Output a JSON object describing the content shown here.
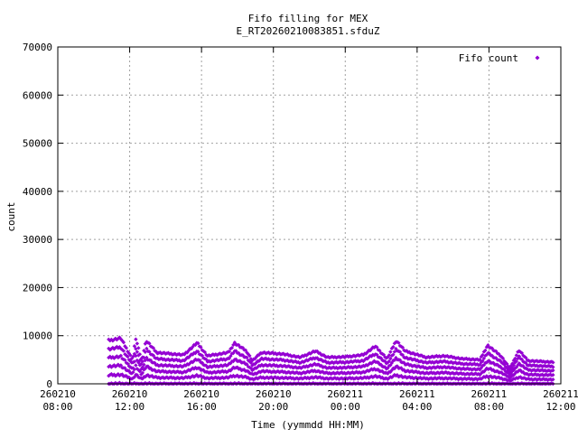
{
  "chart_data": {
    "type": "scatter",
    "title": "Fifo filling for MEX",
    "subtitle": "E_RT20260210083851.sfduZ",
    "xlabel": "Time (yymmdd HH:MM)",
    "ylabel": "count",
    "ylim": [
      0,
      70000
    ],
    "yticks": [
      "0",
      "10000",
      "20000",
      "30000",
      "40000",
      "50000",
      "60000",
      "70000"
    ],
    "xlim": [
      "2026-02-10 08:00",
      "2026-02-11 12:00"
    ],
    "xticks": [
      {
        "date": "260210",
        "time": "08:00"
      },
      {
        "date": "260210",
        "time": "12:00"
      },
      {
        "date": "260210",
        "time": "16:00"
      },
      {
        "date": "260210",
        "time": "20:00"
      },
      {
        "date": "260211",
        "time": "00:00"
      },
      {
        "date": "260211",
        "time": "04:00"
      },
      {
        "date": "260211",
        "time": "08:00"
      },
      {
        "date": "260211",
        "time": "12:00"
      }
    ],
    "grid": true,
    "legend_position": "top-right",
    "series": [
      {
        "name": "Fifo count",
        "color": "#9400d3",
        "marker": "diamond",
        "x_start": "2026-02-10 10:50",
        "x_end": "2026-02-11 11:35",
        "y_min": 0,
        "envelope": [
          {
            "x": "2026-02-10 10:50",
            "y": 9000
          },
          {
            "x": "2026-02-10 11:30",
            "y": 9500
          },
          {
            "x": "2026-02-10 12:10",
            "y": 5000
          },
          {
            "x": "2026-02-10 12:20",
            "y": 9500
          },
          {
            "x": "2026-02-10 12:40",
            "y": 4800
          },
          {
            "x": "2026-02-10 12:55",
            "y": 9000
          },
          {
            "x": "2026-02-10 13:30",
            "y": 6500
          },
          {
            "x": "2026-02-10 15:00",
            "y": 6000
          },
          {
            "x": "2026-02-10 15:45",
            "y": 8500
          },
          {
            "x": "2026-02-10 16:20",
            "y": 5800
          },
          {
            "x": "2026-02-10 17:30",
            "y": 6500
          },
          {
            "x": "2026-02-10 17:50",
            "y": 8500
          },
          {
            "x": "2026-02-10 18:30",
            "y": 6800
          },
          {
            "x": "2026-02-10 18:50",
            "y": 4800
          },
          {
            "x": "2026-02-10 19:20",
            "y": 6500
          },
          {
            "x": "2026-02-10 20:30",
            "y": 6200
          },
          {
            "x": "2026-02-10 21:30",
            "y": 5500
          },
          {
            "x": "2026-02-10 22:20",
            "y": 6800
          },
          {
            "x": "2026-02-10 23:00",
            "y": 5500
          },
          {
            "x": "2026-02-11 00:00",
            "y": 5600
          },
          {
            "x": "2026-02-11 01:00",
            "y": 6000
          },
          {
            "x": "2026-02-11 01:40",
            "y": 7800
          },
          {
            "x": "2026-02-11 02:20",
            "y": 5200
          },
          {
            "x": "2026-02-11 02:50",
            "y": 9000
          },
          {
            "x": "2026-02-11 03:20",
            "y": 6800
          },
          {
            "x": "2026-02-11 04:30",
            "y": 5500
          },
          {
            "x": "2026-02-11 05:30",
            "y": 5800
          },
          {
            "x": "2026-02-11 06:30",
            "y": 5200
          },
          {
            "x": "2026-02-11 07:30",
            "y": 5000
          },
          {
            "x": "2026-02-11 07:55",
            "y": 8000
          },
          {
            "x": "2026-02-11 08:40",
            "y": 5800
          },
          {
            "x": "2026-02-11 09:10",
            "y": 3200
          },
          {
            "x": "2026-02-11 09:40",
            "y": 7000
          },
          {
            "x": "2026-02-11 10:10",
            "y": 4800
          },
          {
            "x": "2026-02-11 11:35",
            "y": 4500
          }
        ],
        "layers": 6
      }
    ]
  }
}
